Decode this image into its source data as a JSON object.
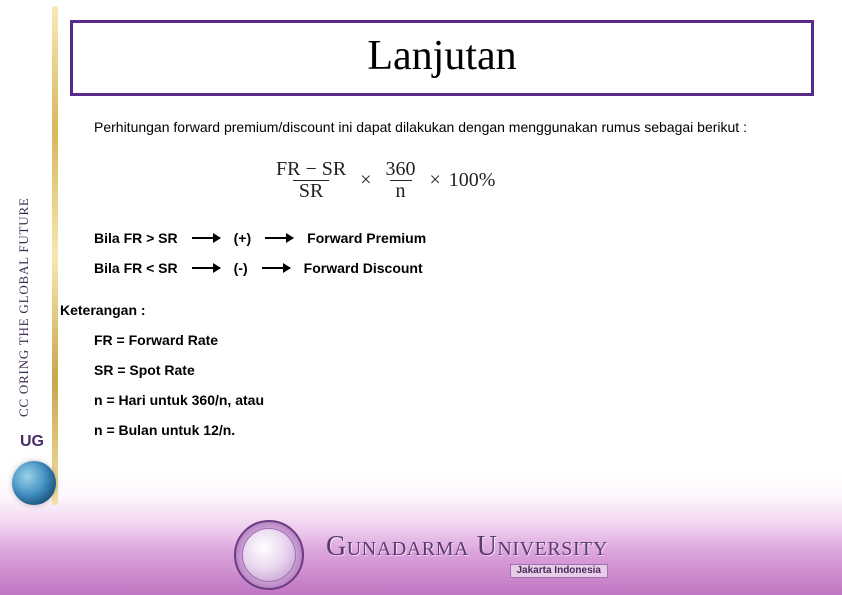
{
  "colors": {
    "title_border": "#5a2a8a",
    "text": "#000000"
  },
  "sidebar": {
    "rotated_text": "CC ORING THE GLOBAL FUTURE",
    "badge": "UG"
  },
  "title": "Lanjutan",
  "intro": "Perhitungan forward premium/discount ini dapat dilakukan dengan menggunakan rumus sebagai berikut :",
  "formula": {
    "frac1_num": "FR − SR",
    "frac1_den": "SR",
    "times1": "×",
    "frac2_num": "360",
    "frac2_den": "n",
    "times2": "×",
    "percent": "100%"
  },
  "conditions": [
    {
      "lhs": "Bila FR > SR",
      "sign": "(+)",
      "rhs": "Forward Premium"
    },
    {
      "lhs": "Bila FR < SR",
      "sign": "(-)",
      "rhs": "Forward Discount"
    }
  ],
  "keterangan": {
    "title": "Keterangan :",
    "lines": [
      "FR = Forward Rate",
      "SR = Spot Rate",
      "n = Hari untuk 360/n, atau",
      "n = Bulan untuk 12/n."
    ]
  },
  "footer": {
    "university": "Gunadarma University",
    "location": "Jakarta Indonesia"
  }
}
